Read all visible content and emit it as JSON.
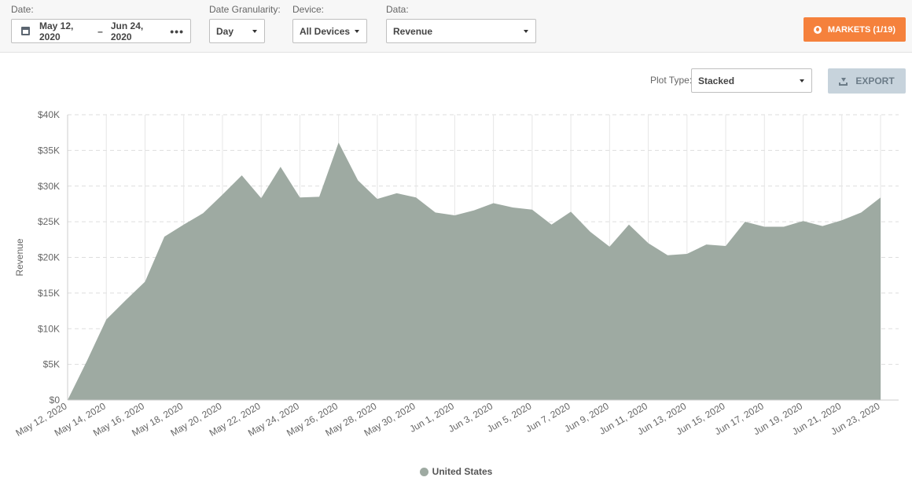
{
  "filters": {
    "date_label": "Date:",
    "date_start": "May 12, 2020",
    "date_separator": "–",
    "date_end": "Jun 24, 2020",
    "date_more": "•••",
    "granularity_label": "Date Granularity:",
    "granularity_value": "Day",
    "device_label": "Device:",
    "device_value": "All Devices",
    "data_label": "Data:",
    "data_value": "Revenue"
  },
  "markets_button": "MARKETS (1/19)",
  "plot_type_label": "Plot Type:",
  "plot_type_value": "Stacked",
  "export_button": "EXPORT",
  "colors": {
    "area": "#9eaaa2",
    "accent": "#f5813c",
    "export_bg": "#c7d3dc"
  },
  "chart_data": {
    "type": "area",
    "ylabel": "Revenue",
    "xlabel": "",
    "ylim": [
      0,
      40000
    ],
    "yticks": [
      "$0",
      "$5K",
      "$10K",
      "$15K",
      "$20K",
      "$25K",
      "$30K",
      "$35K",
      "$40K"
    ],
    "xticks": [
      "May 12, 2020",
      "May 14, 2020",
      "May 16, 2020",
      "May 18, 2020",
      "May 20, 2020",
      "May 22, 2020",
      "May 24, 2020",
      "May 26, 2020",
      "May 28, 2020",
      "May 30, 2020",
      "Jun 1, 2020",
      "Jun 3, 2020",
      "Jun 5, 2020",
      "Jun 7, 2020",
      "Jun 9, 2020",
      "Jun 11, 2020",
      "Jun 13, 2020",
      "Jun 15, 2020",
      "Jun 17, 2020",
      "Jun 19, 2020",
      "Jun 21, 2020",
      "Jun 23, 2020"
    ],
    "grid": true,
    "legend_position": "bottom-center",
    "series": [
      {
        "name": "United States",
        "values": [
          0,
          5500,
          11300,
          14000,
          16600,
          22900,
          24600,
          26200,
          28800,
          31500,
          28300,
          32700,
          28400,
          28500,
          36100,
          30800,
          28200,
          29000,
          28400,
          26300,
          25900,
          26600,
          27600,
          27000,
          26700,
          24600,
          26400,
          23600,
          21500,
          24600,
          22000,
          20300,
          20500,
          21800,
          21600,
          25000,
          24300,
          24300,
          25100,
          24400,
          25200,
          26300,
          28400
        ]
      }
    ]
  }
}
